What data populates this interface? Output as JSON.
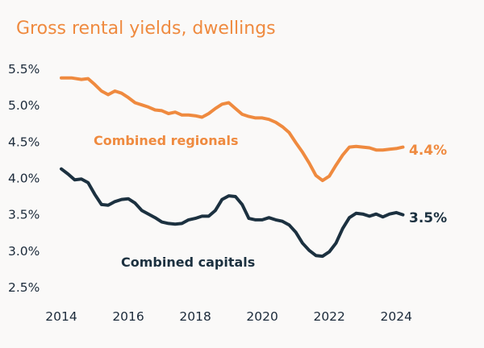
{
  "chart_data": {
    "type": "line",
    "title": "Gross rental yields, dwellings",
    "xlabel": "",
    "ylabel": "",
    "xlim": [
      2014,
      2024.5
    ],
    "ylim": [
      2.5,
      5.5
    ],
    "x_ticks": [
      2014,
      2016,
      2018,
      2020,
      2022,
      2024
    ],
    "x_tick_labels": [
      "2014",
      "2016",
      "2018",
      "2020",
      "2022",
      "2024"
    ],
    "y_ticks": [
      5.5,
      5.0,
      4.5,
      4.0,
      3.5,
      3.0,
      2.5
    ],
    "y_tick_labels": [
      "5.5%",
      "5.0%",
      "4.5%",
      "4.0%",
      "3.5%",
      "3.0%",
      "2.5%"
    ],
    "grid": false,
    "series": [
      {
        "name": "Combined regionals",
        "color": "#ef8a3f",
        "end_label": "4.4%",
        "x": [
          2014.0,
          2014.3,
          2014.6,
          2014.8,
          2015.0,
          2015.2,
          2015.4,
          2015.6,
          2015.8,
          2016.0,
          2016.2,
          2016.4,
          2016.6,
          2016.8,
          2017.0,
          2017.2,
          2017.4,
          2017.6,
          2017.8,
          2018.0,
          2018.2,
          2018.4,
          2018.6,
          2018.8,
          2019.0,
          2019.2,
          2019.4,
          2019.6,
          2019.8,
          2020.0,
          2020.2,
          2020.4,
          2020.6,
          2020.8,
          2021.0,
          2021.2,
          2021.4,
          2021.6,
          2021.8,
          2022.0,
          2022.2,
          2022.4,
          2022.6,
          2022.8,
          2023.0,
          2023.2,
          2023.4,
          2023.6,
          2023.8,
          2024.0,
          2024.2
        ],
        "values": [
          5.37,
          5.37,
          5.35,
          5.36,
          5.28,
          5.19,
          5.14,
          5.19,
          5.16,
          5.1,
          5.03,
          5.0,
          4.97,
          4.93,
          4.92,
          4.88,
          4.9,
          4.86,
          4.86,
          4.85,
          4.83,
          4.88,
          4.95,
          5.01,
          5.03,
          4.95,
          4.87,
          4.84,
          4.82,
          4.82,
          4.8,
          4.76,
          4.7,
          4.62,
          4.48,
          4.35,
          4.2,
          4.03,
          3.96,
          4.02,
          4.17,
          4.31,
          4.42,
          4.43,
          4.42,
          4.41,
          4.38,
          4.38,
          4.39,
          4.4,
          4.42
        ]
      },
      {
        "name": "Combined capitals",
        "color": "#1c3140",
        "end_label": "3.5%",
        "x": [
          2014.0,
          2014.2,
          2014.4,
          2014.6,
          2014.8,
          2015.0,
          2015.2,
          2015.4,
          2015.6,
          2015.8,
          2016.0,
          2016.2,
          2016.4,
          2016.6,
          2016.8,
          2017.0,
          2017.2,
          2017.4,
          2017.6,
          2017.8,
          2018.0,
          2018.2,
          2018.4,
          2018.6,
          2018.8,
          2019.0,
          2019.2,
          2019.4,
          2019.6,
          2019.8,
          2020.0,
          2020.2,
          2020.4,
          2020.6,
          2020.8,
          2021.0,
          2021.2,
          2021.4,
          2021.6,
          2021.8,
          2022.0,
          2022.2,
          2022.4,
          2022.6,
          2022.8,
          2023.0,
          2023.2,
          2023.4,
          2023.6,
          2023.8,
          2024.0,
          2024.2
        ],
        "values": [
          4.12,
          4.05,
          3.97,
          3.98,
          3.93,
          3.77,
          3.63,
          3.62,
          3.67,
          3.7,
          3.71,
          3.65,
          3.55,
          3.5,
          3.45,
          3.39,
          3.37,
          3.36,
          3.37,
          3.42,
          3.44,
          3.47,
          3.47,
          3.55,
          3.7,
          3.75,
          3.74,
          3.63,
          3.44,
          3.42,
          3.42,
          3.45,
          3.42,
          3.4,
          3.35,
          3.25,
          3.1,
          3.0,
          2.93,
          2.92,
          2.98,
          3.1,
          3.3,
          3.45,
          3.51,
          3.5,
          3.47,
          3.5,
          3.46,
          3.5,
          3.52,
          3.49
        ]
      }
    ],
    "annotations": [
      {
        "text": "Combined regionals",
        "series": 0
      },
      {
        "text": "Combined capitals",
        "series": 1
      }
    ]
  }
}
